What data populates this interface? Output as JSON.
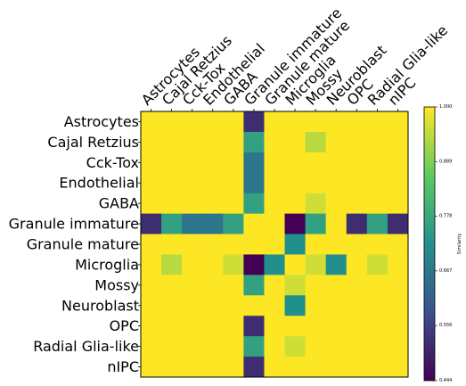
{
  "chart_data": {
    "type": "heatmap",
    "title": "",
    "x_categories": [
      "Astrocytes",
      "Cajal Retzius",
      "Cck-Tox",
      "Endothelial",
      "GABA",
      "Granule immature",
      "Granule mature",
      "Microglia",
      "Mossy",
      "Neuroblast",
      "OPC",
      "Radial Glia-like",
      "nIPC"
    ],
    "y_categories": [
      "Astrocytes",
      "Cajal Retzius",
      "Cck-Tox",
      "Endothelial",
      "GABA",
      "Granule immature",
      "Granule mature",
      "Microglia",
      "Mossy",
      "Neuroblast",
      "OPC",
      "Radial Glia-like",
      "nIPC"
    ],
    "values": [
      [
        1,
        1,
        1,
        1,
        1,
        0.52,
        1,
        1,
        1,
        1,
        1,
        1,
        1
      ],
      [
        1,
        1,
        1,
        1,
        1,
        0.76,
        1,
        1,
        0.94,
        1,
        1,
        1,
        1
      ],
      [
        1,
        1,
        1,
        1,
        1,
        0.66,
        1,
        1,
        1,
        1,
        1,
        1,
        1
      ],
      [
        1,
        1,
        1,
        1,
        1,
        0.66,
        1,
        1,
        1,
        1,
        1,
        1,
        1
      ],
      [
        1,
        1,
        1,
        1,
        1,
        0.76,
        1,
        1,
        0.96,
        1,
        1,
        1,
        1
      ],
      [
        0.52,
        0.76,
        0.66,
        0.66,
        0.76,
        1,
        1,
        0.444,
        0.76,
        1,
        0.52,
        0.76,
        0.52
      ],
      [
        1,
        1,
        1,
        1,
        1,
        1,
        1,
        0.72,
        1,
        1,
        1,
        1,
        1
      ],
      [
        1,
        0.94,
        1,
        1,
        0.96,
        0.444,
        0.72,
        1,
        0.96,
        0.72,
        1,
        0.96,
        1
      ],
      [
        1,
        1,
        1,
        1,
        1,
        0.76,
        1,
        0.96,
        1,
        1,
        1,
        1,
        1
      ],
      [
        1,
        1,
        1,
        1,
        1,
        1,
        1,
        0.72,
        1,
        1,
        1,
        1,
        1
      ],
      [
        1,
        1,
        1,
        1,
        1,
        0.52,
        1,
        1,
        1,
        1,
        1,
        1,
        1
      ],
      [
        1,
        1,
        1,
        1,
        1,
        0.76,
        1,
        0.96,
        1,
        1,
        1,
        1,
        1
      ],
      [
        1,
        1,
        1,
        1,
        1,
        0.52,
        1,
        1,
        1,
        1,
        1,
        1,
        1
      ]
    ],
    "colorbar": {
      "label": "Similarity",
      "min": 0.444,
      "max": 1.0,
      "ticks": [
        "1.000",
        "0.889",
        "0.778",
        "0.667",
        "0.556",
        "0.444"
      ],
      "colormap": "viridis"
    },
    "colormap_stops": [
      "#440154",
      "#3b528b",
      "#21918c",
      "#5ec962",
      "#fde725"
    ]
  }
}
